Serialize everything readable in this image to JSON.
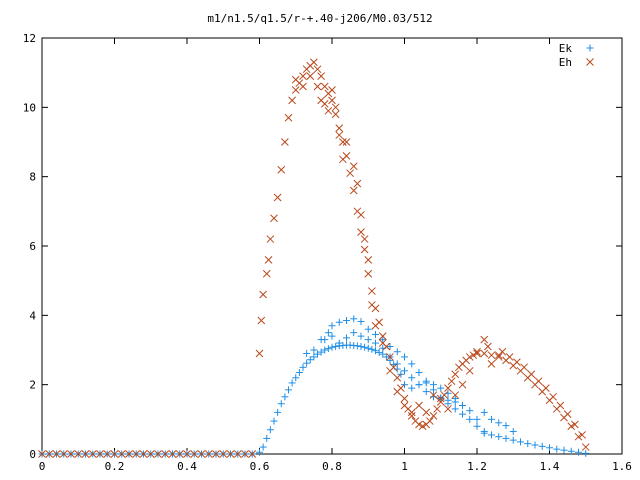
{
  "chart_data": {
    "type": "scatter",
    "title": "m1/n1.5/q1.5/r-+.40-j206/M0.03/512",
    "xlabel": "",
    "ylabel": "",
    "xlim": [
      0,
      1.6
    ],
    "ylim": [
      0,
      12
    ],
    "x_ticks": [
      0,
      0.2,
      0.4,
      0.6,
      0.8,
      1,
      1.2,
      1.4,
      1.6
    ],
    "x_tick_labels": [
      "0",
      "0.2",
      "0.4",
      "0.6",
      "0.8",
      "1",
      "1.2",
      "1.4",
      "1.6"
    ],
    "y_ticks": [
      0,
      2,
      4,
      6,
      8,
      10,
      12
    ],
    "y_tick_labels": [
      "0",
      "2",
      "4",
      "6",
      "8",
      "10",
      "12"
    ],
    "grid": false,
    "legend_position": "top-right",
    "series": [
      {
        "name": "Ek",
        "marker": "plus",
        "color": "#1f8fe6",
        "points": [
          [
            0.0,
            0
          ],
          [
            0.02,
            0
          ],
          [
            0.04,
            0
          ],
          [
            0.06,
            0
          ],
          [
            0.08,
            0
          ],
          [
            0.1,
            0
          ],
          [
            0.12,
            0
          ],
          [
            0.14,
            0
          ],
          [
            0.16,
            0
          ],
          [
            0.18,
            0
          ],
          [
            0.2,
            0
          ],
          [
            0.22,
            0
          ],
          [
            0.24,
            0
          ],
          [
            0.26,
            0
          ],
          [
            0.28,
            0
          ],
          [
            0.3,
            0
          ],
          [
            0.32,
            0
          ],
          [
            0.34,
            0
          ],
          [
            0.36,
            0
          ],
          [
            0.38,
            0
          ],
          [
            0.4,
            0
          ],
          [
            0.42,
            0
          ],
          [
            0.44,
            0
          ],
          [
            0.46,
            0
          ],
          [
            0.48,
            0
          ],
          [
            0.5,
            0
          ],
          [
            0.52,
            0
          ],
          [
            0.54,
            0
          ],
          [
            0.56,
            0
          ],
          [
            0.58,
            0
          ],
          [
            0.6,
            0.05
          ],
          [
            0.61,
            0.2
          ],
          [
            0.62,
            0.45
          ],
          [
            0.63,
            0.7
          ],
          [
            0.64,
            0.95
          ],
          [
            0.65,
            1.2
          ],
          [
            0.66,
            1.45
          ],
          [
            0.67,
            1.65
          ],
          [
            0.68,
            1.85
          ],
          [
            0.69,
            2.05
          ],
          [
            0.7,
            2.2
          ],
          [
            0.71,
            2.35
          ],
          [
            0.72,
            2.5
          ],
          [
            0.73,
            2.62
          ],
          [
            0.74,
            2.72
          ],
          [
            0.75,
            2.8
          ],
          [
            0.76,
            2.88
          ],
          [
            0.77,
            2.94
          ],
          [
            0.78,
            3.0
          ],
          [
            0.79,
            3.04
          ],
          [
            0.8,
            3.08
          ],
          [
            0.81,
            3.1
          ],
          [
            0.82,
            3.12
          ],
          [
            0.83,
            3.13
          ],
          [
            0.84,
            3.14
          ],
          [
            0.85,
            3.14
          ],
          [
            0.86,
            3.13
          ],
          [
            0.87,
            3.12
          ],
          [
            0.88,
            3.1
          ],
          [
            0.89,
            3.08
          ],
          [
            0.9,
            3.05
          ],
          [
            0.91,
            3.02
          ],
          [
            0.92,
            2.98
          ],
          [
            0.93,
            2.93
          ],
          [
            0.94,
            2.88
          ],
          [
            0.95,
            2.8
          ],
          [
            0.96,
            2.7
          ],
          [
            0.97,
            2.58
          ],
          [
            0.98,
            2.45
          ],
          [
            0.99,
            2.3
          ],
          [
            0.73,
            2.9
          ],
          [
            0.75,
            3.0
          ],
          [
            0.77,
            3.3
          ],
          [
            0.79,
            3.5
          ],
          [
            0.8,
            3.7
          ],
          [
            0.82,
            3.8
          ],
          [
            0.84,
            3.85
          ],
          [
            0.86,
            3.9
          ],
          [
            0.88,
            3.82
          ],
          [
            0.9,
            3.6
          ],
          [
            0.92,
            3.45
          ],
          [
            0.94,
            3.3
          ],
          [
            0.96,
            3.1
          ],
          [
            0.98,
            2.95
          ],
          [
            1.0,
            2.8
          ],
          [
            1.02,
            2.6
          ],
          [
            1.04,
            2.35
          ],
          [
            1.06,
            2.1
          ],
          [
            1.08,
            1.85
          ],
          [
            1.1,
            1.62
          ],
          [
            1.12,
            1.45
          ],
          [
            1.14,
            1.3
          ],
          [
            1.16,
            1.15
          ],
          [
            1.18,
            1.0
          ],
          [
            1.2,
            0.8
          ],
          [
            1.22,
            0.65
          ],
          [
            0.78,
            3.3
          ],
          [
            0.8,
            3.4
          ],
          [
            0.82,
            3.2
          ],
          [
            0.84,
            3.35
          ],
          [
            0.86,
            3.5
          ],
          [
            0.88,
            3.4
          ],
          [
            0.9,
            3.3
          ],
          [
            0.92,
            3.2
          ],
          [
            0.94,
            3.05
          ],
          [
            0.96,
            2.8
          ],
          [
            0.98,
            2.6
          ],
          [
            1.0,
            2.4
          ],
          [
            1.02,
            2.2
          ],
          [
            1.04,
            2.0
          ],
          [
            1.06,
            1.8
          ],
          [
            1.08,
            1.65
          ],
          [
            1.1,
            1.6
          ],
          [
            1.12,
            1.55
          ],
          [
            1.14,
            1.5
          ],
          [
            1.16,
            1.4
          ],
          [
            1.18,
            1.25
          ],
          [
            1.2,
            1.0
          ],
          [
            1.22,
            1.2
          ],
          [
            1.24,
            1.0
          ],
          [
            1.26,
            0.9
          ],
          [
            1.28,
            0.82
          ],
          [
            1.3,
            0.65
          ],
          [
            1.0,
            2.0
          ],
          [
            1.02,
            1.9
          ],
          [
            1.04,
            2.0
          ],
          [
            1.06,
            2.05
          ],
          [
            1.08,
            2.0
          ],
          [
            1.1,
            1.9
          ],
          [
            1.12,
            1.75
          ],
          [
            1.14,
            1.6
          ],
          [
            1.16,
            1.4
          ],
          [
            1.22,
            0.6
          ],
          [
            1.24,
            0.55
          ],
          [
            1.26,
            0.5
          ],
          [
            1.28,
            0.45
          ],
          [
            1.3,
            0.4
          ],
          [
            1.32,
            0.35
          ],
          [
            1.34,
            0.3
          ],
          [
            1.36,
            0.26
          ],
          [
            1.38,
            0.22
          ],
          [
            1.4,
            0.18
          ],
          [
            1.42,
            0.14
          ],
          [
            1.44,
            0.11
          ],
          [
            1.46,
            0.08
          ],
          [
            1.48,
            0.05
          ],
          [
            1.5,
            0.02
          ]
        ]
      },
      {
        "name": "Eh",
        "marker": "x",
        "color": "#b8471a",
        "points": [
          [
            0.0,
            0
          ],
          [
            0.02,
            0
          ],
          [
            0.04,
            0
          ],
          [
            0.06,
            0
          ],
          [
            0.08,
            0
          ],
          [
            0.1,
            0
          ],
          [
            0.12,
            0
          ],
          [
            0.14,
            0
          ],
          [
            0.16,
            0
          ],
          [
            0.18,
            0
          ],
          [
            0.2,
            0
          ],
          [
            0.22,
            0
          ],
          [
            0.24,
            0
          ],
          [
            0.26,
            0
          ],
          [
            0.28,
            0
          ],
          [
            0.3,
            0
          ],
          [
            0.32,
            0
          ],
          [
            0.34,
            0
          ],
          [
            0.36,
            0
          ],
          [
            0.38,
            0
          ],
          [
            0.4,
            0
          ],
          [
            0.42,
            0
          ],
          [
            0.44,
            0
          ],
          [
            0.46,
            0
          ],
          [
            0.48,
            0
          ],
          [
            0.5,
            0
          ],
          [
            0.52,
            0
          ],
          [
            0.54,
            0
          ],
          [
            0.56,
            0
          ],
          [
            0.58,
            0
          ],
          [
            0.6,
            2.9
          ],
          [
            0.605,
            3.85
          ],
          [
            0.61,
            4.6
          ],
          [
            0.62,
            5.2
          ],
          [
            0.625,
            5.6
          ],
          [
            0.63,
            6.2
          ],
          [
            0.64,
            6.8
          ],
          [
            0.65,
            7.4
          ],
          [
            0.66,
            8.2
          ],
          [
            0.67,
            9.0
          ],
          [
            0.68,
            9.7
          ],
          [
            0.69,
            10.2
          ],
          [
            0.7,
            10.5
          ],
          [
            0.71,
            10.7
          ],
          [
            0.72,
            10.9
          ],
          [
            0.73,
            11.1
          ],
          [
            0.74,
            11.2
          ],
          [
            0.75,
            11.3
          ],
          [
            0.76,
            11.1
          ],
          [
            0.77,
            10.9
          ],
          [
            0.78,
            10.6
          ],
          [
            0.79,
            10.4
          ],
          [
            0.8,
            10.2
          ],
          [
            0.81,
            9.8
          ],
          [
            0.82,
            9.4
          ],
          [
            0.83,
            9.0
          ],
          [
            0.84,
            8.6
          ],
          [
            0.85,
            8.1
          ],
          [
            0.86,
            7.6
          ],
          [
            0.87,
            7.0
          ],
          [
            0.88,
            6.4
          ],
          [
            0.89,
            5.9
          ],
          [
            0.9,
            5.2
          ],
          [
            0.91,
            4.7
          ],
          [
            0.92,
            4.2
          ],
          [
            0.93,
            3.8
          ],
          [
            0.94,
            3.4
          ],
          [
            0.95,
            3.1
          ],
          [
            0.96,
            2.8
          ],
          [
            0.97,
            2.5
          ],
          [
            0.98,
            2.2
          ],
          [
            0.99,
            1.9
          ],
          [
            1.0,
            1.6
          ],
          [
            1.01,
            1.3
          ],
          [
            1.02,
            1.1
          ],
          [
            1.03,
            0.95
          ],
          [
            1.04,
            0.85
          ],
          [
            1.05,
            0.8
          ],
          [
            1.06,
            0.85
          ],
          [
            1.07,
            0.95
          ],
          [
            1.08,
            1.1
          ],
          [
            1.09,
            1.3
          ],
          [
            1.1,
            1.5
          ],
          [
            1.11,
            1.7
          ],
          [
            1.12,
            1.9
          ],
          [
            1.13,
            2.1
          ],
          [
            1.14,
            2.3
          ],
          [
            1.15,
            2.5
          ],
          [
            1.16,
            2.6
          ],
          [
            1.17,
            2.7
          ],
          [
            1.18,
            2.8
          ],
          [
            1.19,
            2.85
          ],
          [
            1.2,
            2.9
          ],
          [
            1.22,
            2.9
          ],
          [
            1.24,
            2.85
          ],
          [
            1.26,
            2.8
          ],
          [
            1.28,
            2.7
          ],
          [
            1.3,
            2.55
          ],
          [
            1.32,
            2.4
          ],
          [
            1.34,
            2.2
          ],
          [
            1.36,
            2.0
          ],
          [
            1.38,
            1.8
          ],
          [
            1.4,
            1.55
          ],
          [
            1.42,
            1.3
          ],
          [
            1.44,
            1.05
          ],
          [
            1.46,
            0.8
          ],
          [
            1.48,
            0.5
          ],
          [
            1.5,
            0.2
          ],
          [
            0.7,
            10.8
          ],
          [
            0.72,
            10.6
          ],
          [
            0.74,
            10.9
          ],
          [
            0.76,
            10.6
          ],
          [
            0.77,
            10.2
          ],
          [
            0.78,
            10.1
          ],
          [
            0.79,
            9.9
          ],
          [
            0.8,
            10.5
          ],
          [
            0.81,
            10.0
          ],
          [
            0.82,
            9.2
          ],
          [
            0.83,
            8.5
          ],
          [
            0.84,
            9.0
          ],
          [
            0.86,
            8.3
          ],
          [
            0.87,
            7.8
          ],
          [
            0.88,
            6.9
          ],
          [
            0.89,
            6.2
          ],
          [
            0.9,
            5.6
          ],
          [
            0.91,
            4.3
          ],
          [
            0.92,
            3.7
          ],
          [
            0.94,
            3.2
          ],
          [
            0.96,
            2.4
          ],
          [
            0.98,
            1.8
          ],
          [
            1.0,
            1.4
          ],
          [
            1.02,
            1.2
          ],
          [
            1.04,
            1.4
          ],
          [
            1.06,
            1.2
          ],
          [
            1.08,
            1.7
          ],
          [
            1.1,
            1.6
          ],
          [
            1.12,
            1.3
          ],
          [
            1.14,
            1.7
          ],
          [
            1.16,
            2.0
          ],
          [
            1.18,
            2.4
          ],
          [
            1.2,
            2.95
          ],
          [
            1.22,
            3.3
          ],
          [
            1.23,
            3.1
          ],
          [
            1.24,
            2.6
          ],
          [
            1.26,
            2.85
          ],
          [
            1.27,
            2.95
          ],
          [
            1.29,
            2.8
          ],
          [
            1.31,
            2.65
          ],
          [
            1.33,
            2.5
          ],
          [
            1.35,
            2.3
          ],
          [
            1.37,
            2.1
          ],
          [
            1.39,
            1.9
          ],
          [
            1.41,
            1.65
          ],
          [
            1.43,
            1.4
          ],
          [
            1.45,
            1.15
          ],
          [
            1.47,
            0.85
          ],
          [
            1.49,
            0.55
          ]
        ]
      }
    ]
  }
}
